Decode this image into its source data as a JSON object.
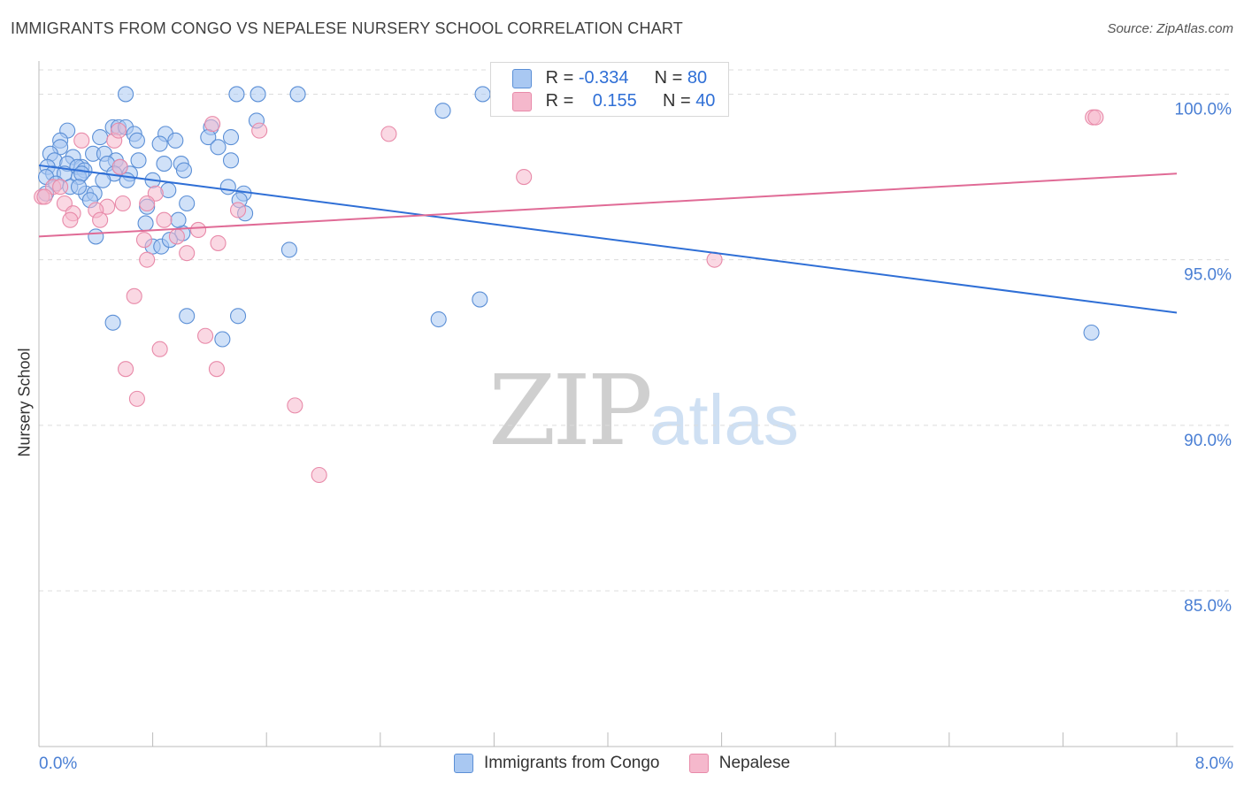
{
  "header": {
    "title": "IMMIGRANTS FROM CONGO VS NEPALESE NURSERY SCHOOL CORRELATION CHART",
    "source": "Source: ZipAtlas.com"
  },
  "watermark": {
    "zip": "ZIP",
    "atlas": "atlas"
  },
  "legend": {
    "rows": [
      {
        "r_label": "R = ",
        "r_value": "-0.334",
        "n_label": "N = ",
        "n_value": "80",
        "color": "#a9c8f2"
      },
      {
        "r_label": "R = ",
        "r_value": "0.155",
        "n_label": "N = ",
        "n_value": "40",
        "color": "#f5b8cc"
      }
    ]
  },
  "bottom_legend": [
    {
      "label": "Immigrants from Congo",
      "color": "#a9c8f2"
    },
    {
      "label": "Nepalese",
      "color": "#f5b8cc"
    }
  ],
  "colors": {
    "congo_fill": "#a9c8f2",
    "congo_stroke": "#5b8fd6",
    "congo_line": "#2f6fd6",
    "nepal_fill": "#f5b8cc",
    "nepal_stroke": "#e88aa9",
    "nepal_line": "#e06b96",
    "grid": "#dcdcdc",
    "axis_label": "#4a7fd4"
  },
  "chart_data": {
    "type": "scatter",
    "title": "IMMIGRANTS FROM CONGO VS NEPALESE NURSERY SCHOOL CORRELATION CHART",
    "xlabel": "",
    "ylabel": "Nursery School",
    "xlim": [
      0.0,
      8.0
    ],
    "ylim": [
      80.3,
      101.0
    ],
    "x_tick_labels": [
      "0.0%",
      "8.0%"
    ],
    "y_ticks": [
      85.0,
      90.0,
      95.0,
      100.0
    ],
    "y_tick_labels": [
      "85.0%",
      "90.0%",
      "95.0%",
      "100.0%"
    ],
    "grid": true,
    "series": [
      {
        "name": "Immigrants from Congo",
        "R": -0.334,
        "N": 80,
        "trend": {
          "x": [
            0.0,
            8.0
          ],
          "y": [
            97.85,
            93.4
          ]
        },
        "points": [
          [
            0.61,
            100.0
          ],
          [
            1.39,
            100.0
          ],
          [
            1.54,
            100.0
          ],
          [
            1.82,
            100.0
          ],
          [
            3.12,
            100.0
          ],
          [
            2.84,
            99.5
          ],
          [
            1.53,
            99.2
          ],
          [
            0.52,
            99.0
          ],
          [
            0.56,
            99.0
          ],
          [
            0.61,
            99.0
          ],
          [
            1.21,
            99.0
          ],
          [
            0.2,
            98.9
          ],
          [
            0.43,
            98.7
          ],
          [
            0.67,
            98.8
          ],
          [
            0.89,
            98.8
          ],
          [
            1.19,
            98.7
          ],
          [
            1.35,
            98.7
          ],
          [
            0.15,
            98.6
          ],
          [
            0.69,
            98.6
          ],
          [
            0.85,
            98.5
          ],
          [
            0.96,
            98.6
          ],
          [
            0.15,
            98.4
          ],
          [
            1.26,
            98.4
          ],
          [
            0.08,
            98.2
          ],
          [
            0.38,
            98.2
          ],
          [
            0.46,
            98.2
          ],
          [
            0.11,
            98.0
          ],
          [
            0.24,
            98.1
          ],
          [
            0.54,
            98.0
          ],
          [
            1.35,
            98.0
          ],
          [
            0.2,
            97.9
          ],
          [
            0.3,
            97.8
          ],
          [
            0.7,
            98.0
          ],
          [
            0.88,
            97.9
          ],
          [
            1.0,
            97.9
          ],
          [
            0.06,
            97.8
          ],
          [
            0.27,
            97.8
          ],
          [
            0.48,
            97.9
          ],
          [
            0.57,
            97.8
          ],
          [
            0.32,
            97.7
          ],
          [
            0.1,
            97.6
          ],
          [
            0.18,
            97.6
          ],
          [
            0.28,
            97.5
          ],
          [
            0.3,
            97.6
          ],
          [
            0.53,
            97.6
          ],
          [
            0.64,
            97.6
          ],
          [
            0.05,
            97.5
          ],
          [
            0.45,
            97.4
          ],
          [
            0.62,
            97.4
          ],
          [
            0.12,
            97.3
          ],
          [
            0.22,
            97.2
          ],
          [
            0.8,
            97.4
          ],
          [
            1.33,
            97.2
          ],
          [
            0.33,
            97.0
          ],
          [
            0.39,
            97.0
          ],
          [
            0.91,
            97.1
          ],
          [
            1.44,
            97.0
          ],
          [
            0.36,
            96.8
          ],
          [
            1.04,
            96.7
          ],
          [
            1.41,
            96.8
          ],
          [
            0.76,
            96.6
          ],
          [
            0.75,
            96.1
          ],
          [
            1.01,
            95.8
          ],
          [
            0.4,
            95.7
          ],
          [
            0.8,
            95.4
          ],
          [
            0.86,
            95.4
          ],
          [
            1.76,
            95.3
          ],
          [
            3.1,
            93.8
          ],
          [
            1.04,
            93.3
          ],
          [
            1.4,
            93.3
          ],
          [
            0.52,
            93.1
          ],
          [
            2.81,
            93.2
          ],
          [
            1.29,
            92.6
          ],
          [
            7.4,
            92.8
          ],
          [
            0.98,
            96.2
          ],
          [
            0.05,
            97.0
          ],
          [
            0.92,
            95.6
          ],
          [
            1.45,
            96.4
          ],
          [
            0.28,
            97.2
          ],
          [
            1.02,
            97.7
          ]
        ]
      },
      {
        "name": "Nepalese",
        "R": 0.155,
        "N": 40,
        "trend": {
          "x": [
            0.0,
            8.0
          ],
          "y": [
            95.7,
            97.6
          ]
        },
        "points": [
          [
            1.22,
            99.1
          ],
          [
            7.41,
            99.3
          ],
          [
            7.43,
            99.3
          ],
          [
            1.55,
            98.9
          ],
          [
            2.46,
            98.8
          ],
          [
            0.3,
            98.6
          ],
          [
            0.53,
            98.6
          ],
          [
            0.56,
            98.9
          ],
          [
            0.57,
            97.8
          ],
          [
            3.41,
            97.5
          ],
          [
            0.1,
            97.2
          ],
          [
            0.15,
            97.2
          ],
          [
            0.82,
            97.0
          ],
          [
            0.02,
            96.9
          ],
          [
            0.18,
            96.7
          ],
          [
            0.48,
            96.6
          ],
          [
            0.59,
            96.7
          ],
          [
            0.76,
            96.7
          ],
          [
            0.4,
            96.5
          ],
          [
            1.4,
            96.5
          ],
          [
            0.24,
            96.4
          ],
          [
            0.22,
            96.2
          ],
          [
            0.43,
            96.2
          ],
          [
            0.88,
            96.2
          ],
          [
            1.12,
            95.9
          ],
          [
            0.97,
            95.7
          ],
          [
            0.74,
            95.6
          ],
          [
            1.26,
            95.5
          ],
          [
            1.04,
            95.2
          ],
          [
            0.76,
            95.0
          ],
          [
            4.75,
            95.0
          ],
          [
            0.67,
            93.9
          ],
          [
            1.17,
            92.7
          ],
          [
            0.85,
            92.3
          ],
          [
            0.61,
            91.7
          ],
          [
            1.25,
            91.7
          ],
          [
            0.69,
            90.8
          ],
          [
            1.8,
            90.6
          ],
          [
            1.97,
            88.5
          ],
          [
            0.04,
            96.9
          ]
        ]
      }
    ]
  }
}
